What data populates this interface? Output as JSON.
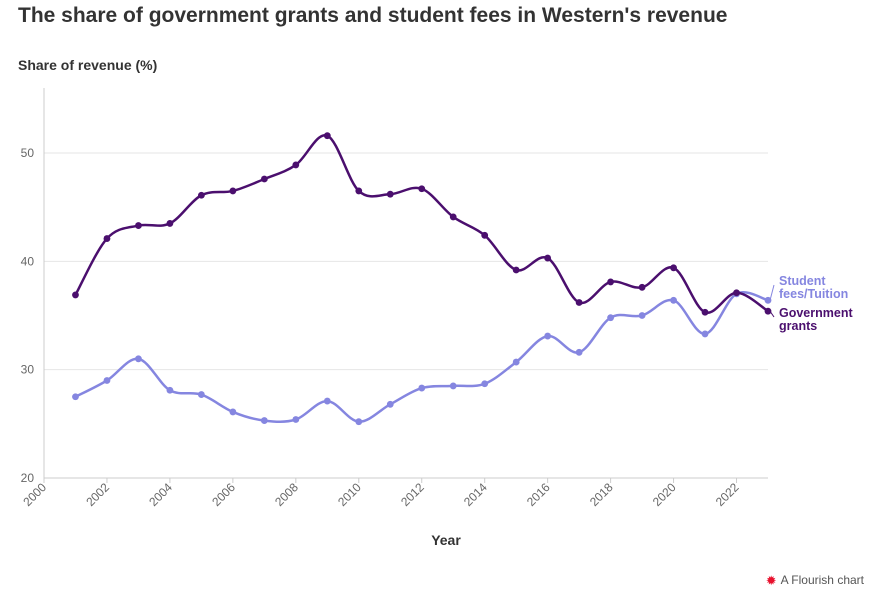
{
  "title": "The share of government grants and student fees in Western's revenue",
  "footer": {
    "text": "A Flourish chart",
    "icon": "flourish-icon"
  },
  "chart_data": {
    "type": "line",
    "ylabel": "Share of revenue (%)",
    "xlabel": "Year",
    "x": [
      2001,
      2002,
      2003,
      2004,
      2005,
      2006,
      2007,
      2008,
      2009,
      2010,
      2011,
      2012,
      2013,
      2014,
      2015,
      2016,
      2017,
      2018,
      2019,
      2020,
      2021,
      2022,
      2023
    ],
    "xlim": [
      2000,
      2023
    ],
    "ylim": [
      20,
      56
    ],
    "xticks": [
      "2000",
      "2002",
      "2004",
      "2006",
      "2008",
      "2010",
      "2012",
      "2014",
      "2016",
      "2018",
      "2020",
      "2022"
    ],
    "yticks": [
      "20",
      "30",
      "40",
      "50"
    ],
    "grid": true,
    "series": [
      {
        "name_lines": [
          "Government",
          "grants"
        ],
        "color": "#4b0f6e",
        "values": [
          36.9,
          42.1,
          43.3,
          43.5,
          46.1,
          46.5,
          47.6,
          48.9,
          51.6,
          46.5,
          46.2,
          46.7,
          44.1,
          42.4,
          39.2,
          40.3,
          36.2,
          38.1,
          37.6,
          39.4,
          35.3,
          37.1,
          35.4
        ]
      },
      {
        "name_lines": [
          "Student",
          "fees/Tuition"
        ],
        "color": "#8586e0",
        "values": [
          27.5,
          29.0,
          31.0,
          28.1,
          27.7,
          26.1,
          25.3,
          25.4,
          27.1,
          25.2,
          26.8,
          28.3,
          28.5,
          28.7,
          30.7,
          33.1,
          31.6,
          34.8,
          35.0,
          36.4,
          33.3,
          37.0,
          36.4
        ]
      }
    ]
  }
}
